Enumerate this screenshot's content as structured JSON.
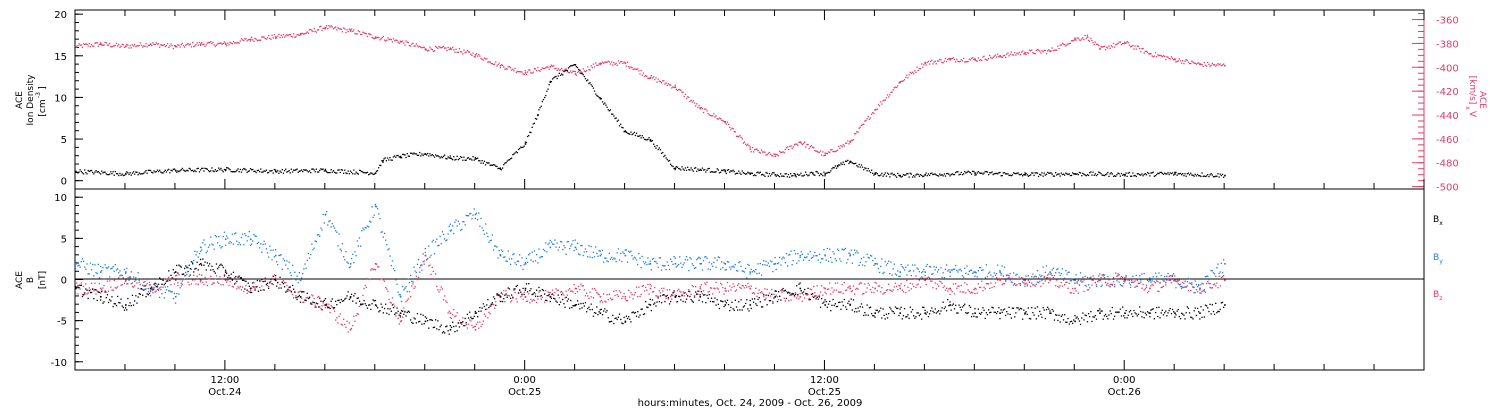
{
  "chart_data": [
    {
      "type": "scatter",
      "panel": "top",
      "title": "",
      "xlabel": "",
      "ylabel_left": [
        "ACE",
        "Ion Density",
        "[cm",
        "-3",
        "]"
      ],
      "ylabel_right": [
        "ACE",
        "V",
        "x",
        "[km/s]"
      ],
      "ylim_left": [
        -1,
        20.5
      ],
      "ylim_right": [
        -502,
        -352
      ],
      "y_ticks_left": [
        "0",
        "5",
        "10",
        "15",
        "20"
      ],
      "y_ticks_right": [
        "-360",
        "-380",
        "-400",
        "-420",
        "-440",
        "-460",
        "-480",
        "-500"
      ],
      "grid": false,
      "series": [
        {
          "axis": "left",
          "color": "#000000",
          "x": [
            0,
            2,
            4,
            6,
            8,
            10,
            12,
            12.3,
            13,
            14,
            15,
            16,
            17,
            18,
            18.5,
            19,
            20,
            21,
            22,
            23,
            24,
            25,
            26,
            27,
            28,
            28.8,
            29.5,
            30,
            30.5,
            31,
            32,
            33,
            34,
            36,
            38,
            40,
            42,
            44,
            46
          ],
          "values": [
            1.2,
            0.9,
            1.3,
            1.4,
            1.2,
            1.3,
            1.0,
            2.5,
            3.0,
            3.3,
            2.8,
            2.7,
            1.5,
            4.5,
            8,
            12,
            14,
            10,
            6,
            5,
            1.6,
            1.4,
            1.2,
            0.9,
            0.8,
            0.7,
            1.0,
            0.9,
            1.8,
            2.4,
            0.9,
            0.7,
            0.8,
            1.0,
            0.8,
            0.9,
            0.8,
            0.9,
            0.7
          ]
        },
        {
          "axis": "right",
          "color": "#e23c69",
          "x": [
            0,
            1,
            2,
            3,
            4,
            5,
            6,
            7,
            8,
            9,
            10,
            11,
            12,
            13,
            14,
            15,
            16,
            17,
            18,
            19,
            20,
            21,
            22,
            23,
            24,
            25,
            26,
            27,
            28,
            29,
            30,
            31,
            32,
            33,
            34,
            35,
            36,
            37,
            38,
            39,
            40,
            40.5,
            41,
            42,
            43,
            44,
            45,
            46
          ],
          "values": [
            -382,
            -380,
            -382,
            -380,
            -382,
            -380,
            -380,
            -376,
            -374,
            -372,
            -366,
            -369,
            -374,
            -378,
            -384,
            -384,
            -389,
            -398,
            -404,
            -399,
            -405,
            -396,
            -396,
            -408,
            -416,
            -434,
            -445,
            -468,
            -474,
            -462,
            -473,
            -462,
            -435,
            -412,
            -396,
            -393,
            -393,
            -390,
            -387,
            -386,
            -376,
            -374,
            -384,
            -379,
            -388,
            -393,
            -397,
            -398
          ]
        }
      ]
    },
    {
      "type": "scatter",
      "panel": "bottom",
      "title": "",
      "ylabel": [
        "ACE",
        "B",
        "[nT]"
      ],
      "ylim": [
        -11,
        11
      ],
      "y_ticks": [
        "-10",
        "-5",
        "0",
        "5",
        "10"
      ],
      "grid": false,
      "series": [
        {
          "name": "B",
          "subscript": "x",
          "color": "#000000",
          "x": [
            0,
            1,
            2,
            3,
            4,
            5,
            6,
            7,
            8,
            9,
            10,
            11,
            12,
            13,
            14,
            15,
            16,
            17,
            18,
            19,
            20,
            21,
            22,
            23,
            24,
            25,
            26,
            27,
            28,
            29,
            30,
            31,
            32,
            33,
            34,
            35,
            36,
            37,
            38,
            39,
            40,
            41,
            42,
            43,
            44,
            45,
            46
          ],
          "values": [
            -1,
            -2,
            -3,
            -1,
            1,
            2,
            1,
            -1,
            0,
            -2,
            -3,
            -2,
            -3,
            -4,
            -5,
            -6,
            -4,
            -2,
            -1,
            -2,
            -3,
            -4,
            -5,
            -3,
            -2,
            -2,
            -3,
            -3,
            -2,
            -1,
            -3,
            -3,
            -4,
            -4,
            -4,
            -3,
            -4,
            -4,
            -4,
            -4,
            -5,
            -4,
            -4,
            -4,
            -4,
            -4,
            -3
          ]
        },
        {
          "name": "B",
          "subscript": "y",
          "color": "#1e7fd8",
          "x": [
            0,
            1,
            2,
            3,
            4,
            5,
            6,
            7,
            8,
            9,
            10,
            11,
            12,
            13,
            14,
            15,
            16,
            17,
            18,
            19,
            20,
            21,
            22,
            23,
            24,
            25,
            26,
            27,
            28,
            29,
            30,
            31,
            32,
            33,
            34,
            35,
            36,
            37,
            38,
            39,
            40,
            41,
            42,
            43,
            44,
            45,
            46
          ],
          "values": [
            2,
            1,
            1,
            -1,
            -2,
            4,
            5,
            5,
            3,
            0,
            8,
            2,
            9,
            -2,
            3,
            6,
            8,
            3,
            2,
            4,
            4,
            3,
            3,
            2,
            2,
            2,
            2,
            1,
            2,
            3,
            3,
            3,
            2,
            1,
            1,
            1,
            1,
            1,
            0,
            1,
            0,
            0,
            0,
            0,
            0,
            -1,
            2
          ]
        },
        {
          "name": "B",
          "subscript": "z",
          "color": "#e23c69",
          "x": [
            0,
            1,
            2,
            3,
            4,
            5,
            6,
            7,
            8,
            9,
            10,
            11,
            12,
            13,
            14,
            15,
            16,
            17,
            18,
            19,
            20,
            21,
            22,
            23,
            24,
            25,
            26,
            27,
            28,
            29,
            30,
            31,
            32,
            33,
            34,
            35,
            36,
            37,
            38,
            39,
            40,
            41,
            42,
            43,
            44,
            45,
            46
          ],
          "values": [
            -1,
            -1,
            0,
            -1,
            0,
            0,
            0,
            -1,
            0,
            -2,
            -3,
            -6,
            2,
            -5,
            3,
            -4,
            -6,
            -2,
            -2,
            -2,
            -1,
            -2,
            -2,
            -1,
            -2,
            -1,
            -1,
            -1,
            -2,
            -2,
            -1,
            -1,
            -1,
            -1,
            0,
            -1,
            -1,
            0,
            0,
            0,
            -1,
            0,
            0,
            -1,
            0,
            -1,
            0
          ]
        }
      ]
    }
  ],
  "x_axis": {
    "title": "hours:minutes, Oct. 24, 2009 - Oct. 26, 2009",
    "ticks": [
      {
        "x": 6,
        "time": "12:00",
        "date": "Oct.24"
      },
      {
        "x": 18,
        "time": "0:00",
        "date": "Oct.25"
      },
      {
        "x": 30,
        "time": "12:00",
        "date": "Oct.25"
      },
      {
        "x": 42,
        "time": "0:00",
        "date": "Oct.26"
      }
    ],
    "xlim": [
      0,
      54
    ]
  },
  "legend_bottom": {
    "labels": [
      "B",
      "B",
      "B"
    ],
    "subscripts": [
      "x",
      "y",
      "z"
    ],
    "colors": [
      "#000000",
      "#1e7fd8",
      "#e23c69"
    ]
  }
}
